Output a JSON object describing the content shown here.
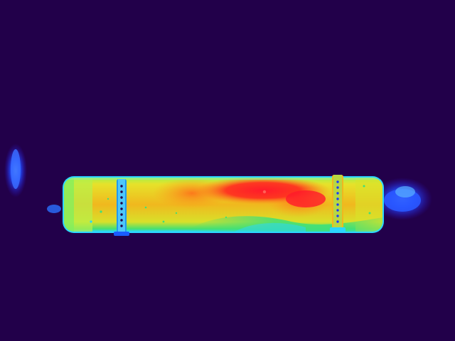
{
  "image": {
    "kind": "thermal-image",
    "palette": {
      "background": "#22004a",
      "cold": "#1a3cff",
      "cool": "#2bd6ff",
      "mid": "#3fe07a",
      "warm": "#d6e62a",
      "hot": "#ff8a1a",
      "hottest": "#ff1a2a"
    },
    "objects": [
      {
        "name": "pipe",
        "icon": "cylinder-heat-shape"
      },
      {
        "name": "left-clamp",
        "icon": "hose-clamp-shape"
      },
      {
        "name": "right-clamp",
        "icon": "hose-clamp-shape"
      },
      {
        "name": "left-glow",
        "icon": "cold-glow-shape"
      },
      {
        "name": "right-glow",
        "icon": "cold-glow-shape"
      }
    ]
  }
}
